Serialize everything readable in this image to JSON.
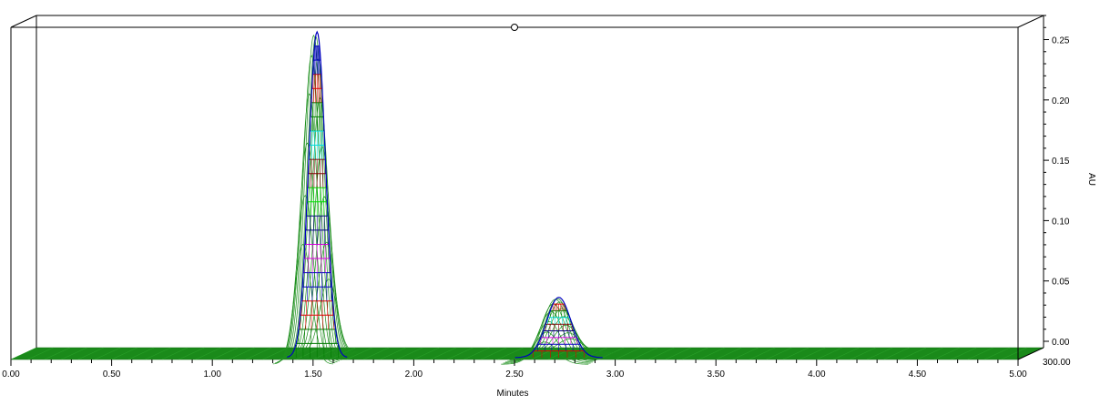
{
  "chart_data": {
    "type": "3d-wireframe",
    "title": "",
    "xlabel": "Minutes",
    "ylabel": "AU",
    "xlim": [
      0,
      5
    ],
    "ylim": [
      0,
      0.27
    ],
    "x_ticks": [
      "0.00",
      "0.50",
      "1.00",
      "1.50",
      "2.00",
      "2.50",
      "3.00",
      "3.50",
      "4.00",
      "4.50",
      "5.00"
    ],
    "y_ticks": [
      "0.00",
      "0.05",
      "0.10",
      "0.15",
      "0.20",
      "0.25"
    ],
    "depth_tick": "300.00",
    "peaks": [
      {
        "retention_time": 1.52,
        "max_absorbance": 0.27
      },
      {
        "retention_time": 2.72,
        "max_absorbance": 0.05
      }
    ],
    "contour_colors": [
      "#007a00",
      "#e00000",
      "#0000c0",
      "#e000e0",
      "#000080",
      "#00e000",
      "#800000",
      "#00e0e0",
      "#008000",
      "#e00000",
      "#0000c0"
    ],
    "marker_x": 2.5
  }
}
